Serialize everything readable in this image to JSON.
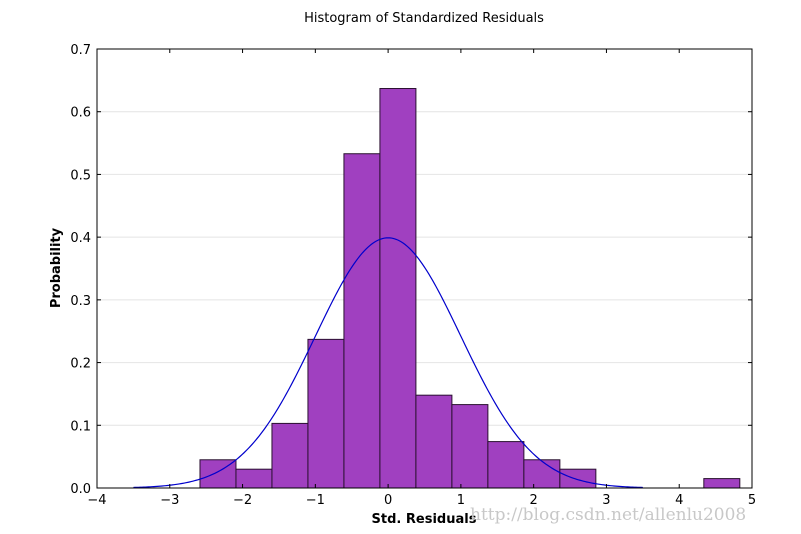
{
  "chart_data": {
    "type": "bar",
    "title": "Histogram of Standardized Residuals",
    "xlabel": "Std. Residuals",
    "ylabel": "Probability",
    "xlim": [
      -4,
      5
    ],
    "ylim": [
      0,
      0.7
    ],
    "xticks": [
      -4,
      -3,
      -2,
      -1,
      0,
      1,
      2,
      3,
      4,
      5
    ],
    "xtick_labels": [
      "−4",
      "−3",
      "−2",
      "−1",
      "0",
      "1",
      "2",
      "3",
      "4",
      "5"
    ],
    "yticks": [
      0,
      0.1,
      0.2,
      0.3,
      0.4,
      0.5,
      0.6,
      0.7
    ],
    "ytick_labels": [
      "0.0",
      "0.1",
      "0.2",
      "0.3",
      "0.4",
      "0.5",
      "0.6",
      "0.7"
    ],
    "grid": "horizontal",
    "bin_start": -2.585,
    "bin_width": 0.4945,
    "values": [
      0.045,
      0.03,
      0.103,
      0.237,
      0.533,
      0.637,
      0.148,
      0.133,
      0.074,
      0.045,
      0.03,
      0,
      0,
      0,
      0.015
    ],
    "bar_color": "#a040c0",
    "curve": {
      "type": "normal-pdf",
      "mean": 0,
      "std": 1,
      "x_range": [
        -3.5,
        3.5
      ],
      "color": "#0000cc"
    }
  },
  "watermark": "http://blog.csdn.net/allenlu2008"
}
